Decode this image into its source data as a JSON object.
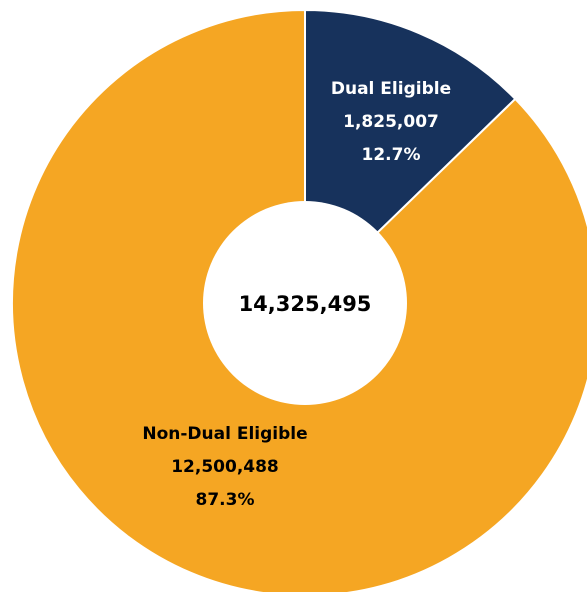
{
  "chart_data": {
    "type": "pie",
    "variant": "donut",
    "title": "",
    "center_label": "14,325,495",
    "slices": [
      {
        "name": "Dual Eligible",
        "value": 1825007,
        "value_label": "1,825,007",
        "percent_label": "12.7%",
        "color": "#17325c",
        "label_color": "#ffffff"
      },
      {
        "name": "Non-Dual Eligible",
        "value": 12500488,
        "value_label": "12,500,488",
        "percent_label": "87.3%",
        "color": "#f5a623",
        "label_color": "#000000"
      }
    ],
    "legend": "none"
  }
}
